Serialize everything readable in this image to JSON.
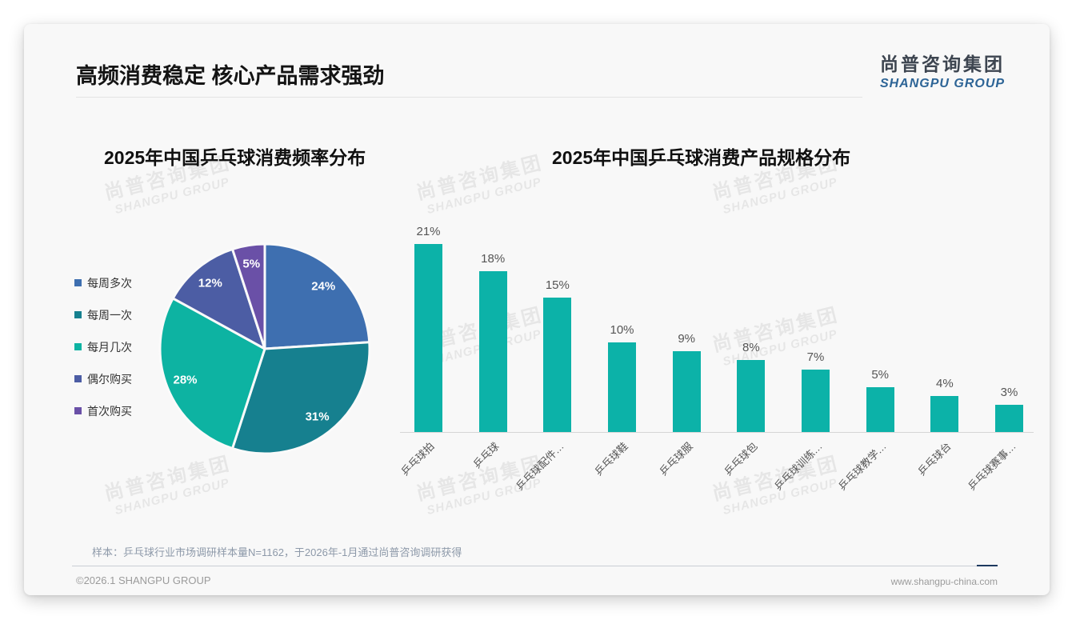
{
  "page": {
    "title": "高频消费稳定 核心产品需求强劲",
    "logo": {
      "cn": "尚普咨询集团",
      "en": "SHANGPU GROUP"
    },
    "watermark": {
      "cn": "尚普咨询集团",
      "en": "SHANGPU GROUP"
    },
    "footnote": "样本：乒乓球行业市场调研样本量N=1162，于2026年-1月通过尚普咨询调研获得",
    "footer_left": "©2026.1 SHANGPU GROUP",
    "footer_right": "www.shangpu-china.com"
  },
  "chart_data": [
    {
      "type": "pie",
      "title": "2025年中国乒乓球消费频率分布",
      "labels": [
        "每周多次",
        "每周一次",
        "每月几次",
        "偶尔购买",
        "首次购买"
      ],
      "values": [
        24,
        31,
        28,
        12,
        5
      ],
      "value_labels": [
        "24%",
        "31%",
        "28%",
        "12%",
        "5%"
      ],
      "unit": "%",
      "colors": [
        "#3E6FB0",
        "#16808F",
        "#0DB3A2",
        "#4C5DA4",
        "#6A50A7"
      ],
      "legend_position": "left",
      "start_angle": "top",
      "direction": "clockwise"
    },
    {
      "type": "bar",
      "title": "2025年中国乒乓球消费产品规格分布",
      "categories": [
        "乒乓球拍",
        "乒乓球",
        "乒乓球配件…",
        "乒乓球鞋",
        "乒乓球服",
        "乒乓球包",
        "乒乓球训练…",
        "乒乓球教学…",
        "乒乓球台",
        "乒乓球赛事…"
      ],
      "values": [
        21,
        18,
        15,
        10,
        9,
        8,
        7,
        5,
        4,
        3
      ],
      "value_labels": [
        "21%",
        "18%",
        "15%",
        "10%",
        "9%",
        "8%",
        "7%",
        "5%",
        "4%",
        "3%"
      ],
      "unit": "%",
      "bar_color": "#0CB2A8",
      "ylim": [
        0,
        22
      ],
      "grid": false,
      "legend_position": "none"
    }
  ]
}
